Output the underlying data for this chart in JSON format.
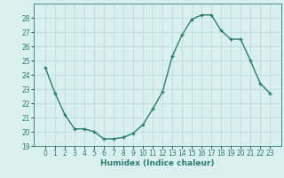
{
  "x": [
    0,
    1,
    2,
    3,
    4,
    5,
    6,
    7,
    8,
    9,
    10,
    11,
    12,
    13,
    14,
    15,
    16,
    17,
    18,
    19,
    20,
    21,
    22,
    23
  ],
  "y": [
    24.5,
    22.7,
    21.2,
    20.2,
    20.2,
    20.0,
    19.5,
    19.5,
    19.6,
    19.9,
    20.5,
    21.6,
    22.8,
    25.3,
    26.8,
    27.9,
    28.2,
    28.2,
    27.1,
    26.5,
    26.5,
    25.0,
    23.4,
    22.7
  ],
  "line_color": "#2d7d6e",
  "marker": "+",
  "marker_size": 3,
  "bg_color": "#d9f0ef",
  "grid_color": "#b8dbd8",
  "xlabel": "Humidex (Indice chaleur)",
  "ylim": [
    19,
    29
  ],
  "yticks": [
    19,
    20,
    21,
    22,
    23,
    24,
    25,
    26,
    27,
    28
  ],
  "xticks": [
    0,
    1,
    2,
    3,
    4,
    5,
    6,
    7,
    8,
    9,
    10,
    11,
    12,
    13,
    14,
    15,
    16,
    17,
    18,
    19,
    20,
    21,
    22,
    23
  ],
  "label_fontsize": 6.5,
  "tick_fontsize": 5.5,
  "line_width": 1.0
}
